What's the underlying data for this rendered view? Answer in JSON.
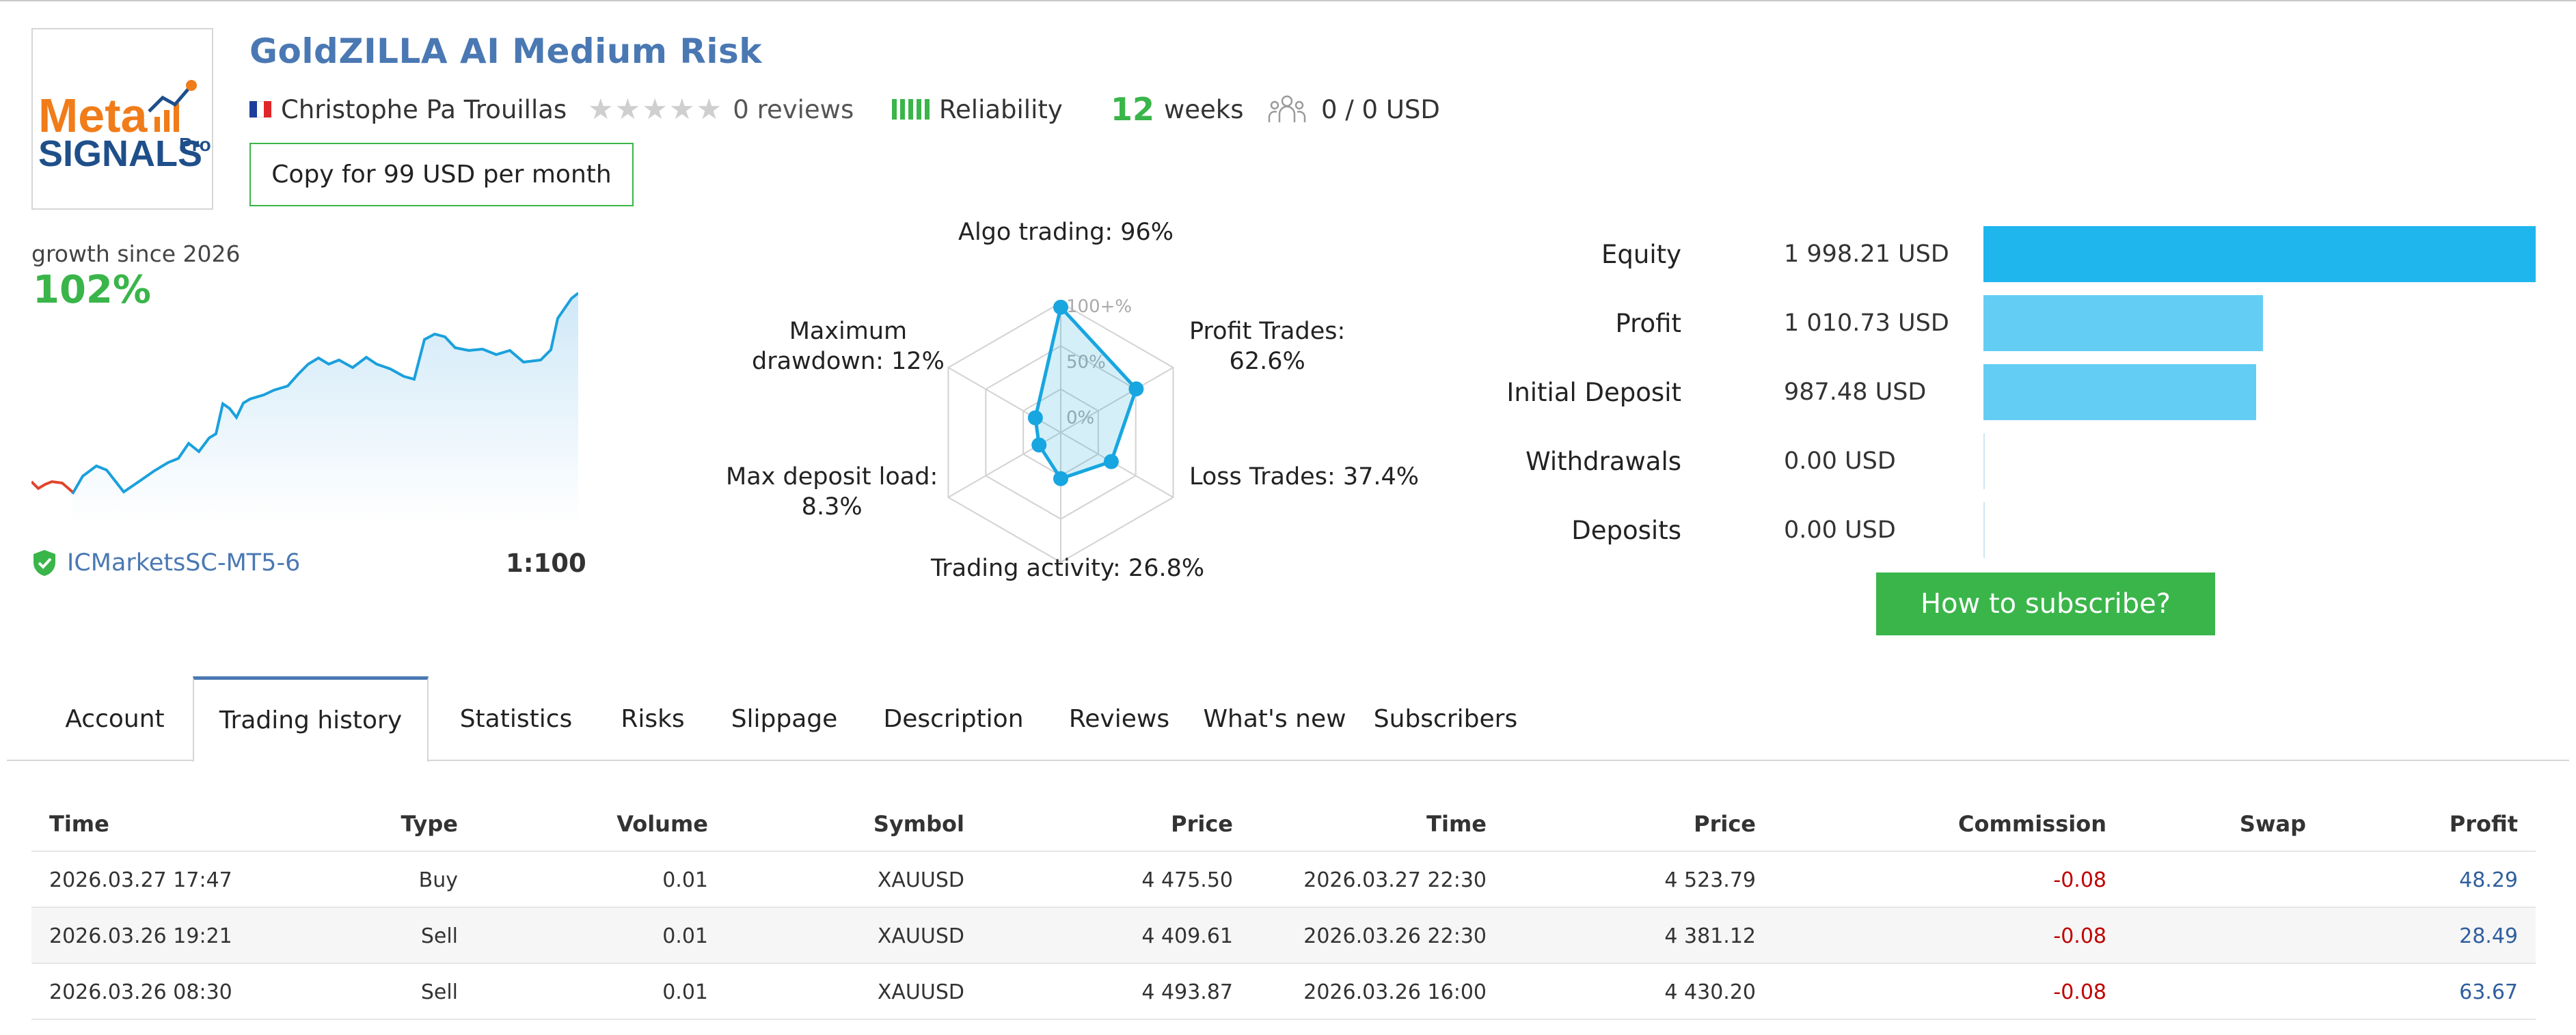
{
  "header": {
    "title": "GoldZILLA AI Medium Risk",
    "author": "Christophe Pa Trouillas",
    "reviews": "0 reviews",
    "reliability": "Reliability",
    "weeks_number": "12",
    "weeks_label": "weeks",
    "subscribers_funds": "0 / 0 USD",
    "copy_button": "Copy for 99 USD per month"
  },
  "logo": {
    "line1": "Meta",
    "line2": "SIGNALS",
    "suffix": "Pro"
  },
  "growth": {
    "label": "growth since 2026",
    "value": "102%",
    "broker": "ICMarketsSC-MT5-6",
    "leverage": "1:100"
  },
  "radar": {
    "labels": {
      "algo": "Algo trading: 96%",
      "profit_trades": "Profit Trades:",
      "profit_trades_value": "62.6%",
      "loss_trades": "Loss Trades: 37.4%",
      "trading_activity": "Trading activity: 26.8%",
      "max_deposit_load": "Max deposit load:",
      "max_deposit_load_value": "8.3%",
      "max_drawdown": "Maximum",
      "max_drawdown_value": "drawdown: 12%"
    },
    "scale_labels": [
      "100+%",
      "50%",
      "0%"
    ],
    "values": [
      96,
      62.6,
      37.4,
      26.8,
      8.3,
      12
    ]
  },
  "equity": [
    {
      "label": "Equity",
      "value": "1 998.21 USD",
      "amount": 1998.21
    },
    {
      "label": "Profit",
      "value": "1 010.73 USD",
      "amount": 1010.73
    },
    {
      "label": "Initial Deposit",
      "value": "987.48 USD",
      "amount": 987.48
    },
    {
      "label": "Withdrawals",
      "value": "0.00 USD",
      "amount": 0
    },
    {
      "label": "Deposits",
      "value": "0.00 USD",
      "amount": 0
    }
  ],
  "colors": {
    "green": "#3ab54a",
    "blue_title": "#4a78b3",
    "bar_main": "#1fb6ee",
    "bar_light": "#64cdf3",
    "radar": "#18a6e0"
  },
  "subscribe_button": "How to subscribe?",
  "tabs": [
    "Account",
    "Trading history",
    "Statistics",
    "Risks",
    "Slippage",
    "Description",
    "Reviews",
    "What's new",
    "Subscribers"
  ],
  "active_tab": "Trading history",
  "table": {
    "columns": [
      "Time",
      "Type",
      "Volume",
      "Symbol",
      "Price",
      "Time",
      "Price",
      "Commission",
      "Swap",
      "Profit"
    ],
    "rows": [
      [
        "2026.03.27 17:47",
        "Buy",
        "0.01",
        "XAUUSD",
        "4 475.50",
        "2026.03.27 22:30",
        "4 523.79",
        "-0.08",
        "",
        "48.29"
      ],
      [
        "2026.03.26 19:21",
        "Sell",
        "0.01",
        "XAUUSD",
        "4 409.61",
        "2026.03.26 22:30",
        "4 381.12",
        "-0.08",
        "",
        "28.49"
      ],
      [
        "2026.03.26 08:30",
        "Sell",
        "0.01",
        "XAUUSD",
        "4 493.87",
        "2026.03.26 16:00",
        "4 430.20",
        "-0.08",
        "",
        "63.67"
      ]
    ]
  }
}
